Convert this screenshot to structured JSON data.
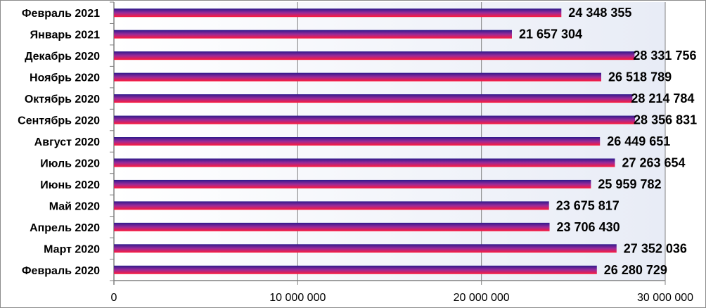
{
  "chart_data": {
    "type": "bar",
    "orientation": "horizontal",
    "title": "",
    "xlabel": "",
    "ylabel": "",
    "categories": [
      "Февраль 2021",
      "Январь 2021",
      "Декабрь 2020",
      "Ноябрь 2020",
      "Октябрь 2020",
      "Сентябрь 2020",
      "Август 2020",
      "Июль 2020",
      "Июнь 2020",
      "Май 2020",
      "Апрель 2020",
      "Март 2020",
      "Февраль 2020"
    ],
    "values": [
      24348355,
      21657304,
      28331756,
      26518789,
      28214784,
      28356831,
      26449651,
      27263654,
      25959782,
      23675817,
      23706430,
      27352036,
      26280729
    ],
    "value_labels": [
      "24 348 355",
      "21 657 304",
      "28 331 756",
      "26 518 789",
      "28 214 784",
      "28 356 831",
      "26 449 651",
      "27 263 654",
      "25 959 782",
      "23 675 817",
      "23 706 430",
      "27 352 036",
      "26 280 729"
    ],
    "xlim": [
      0,
      30000000
    ],
    "ticks": [
      0,
      10000000,
      20000000,
      30000000
    ],
    "tick_labels": [
      "0",
      "10 000 000",
      "20 000 000",
      "30 000 000"
    ],
    "grid": true,
    "legend": "none"
  },
  "colors": {
    "bar_top": "#2e1a8c",
    "bar_mid": "#9a2a9a",
    "bar_bottom": "#ff1a3a",
    "plot_bg_right": "#e8ecf6",
    "plot_bg_left": "#ffffff",
    "grid": "#808080"
  }
}
